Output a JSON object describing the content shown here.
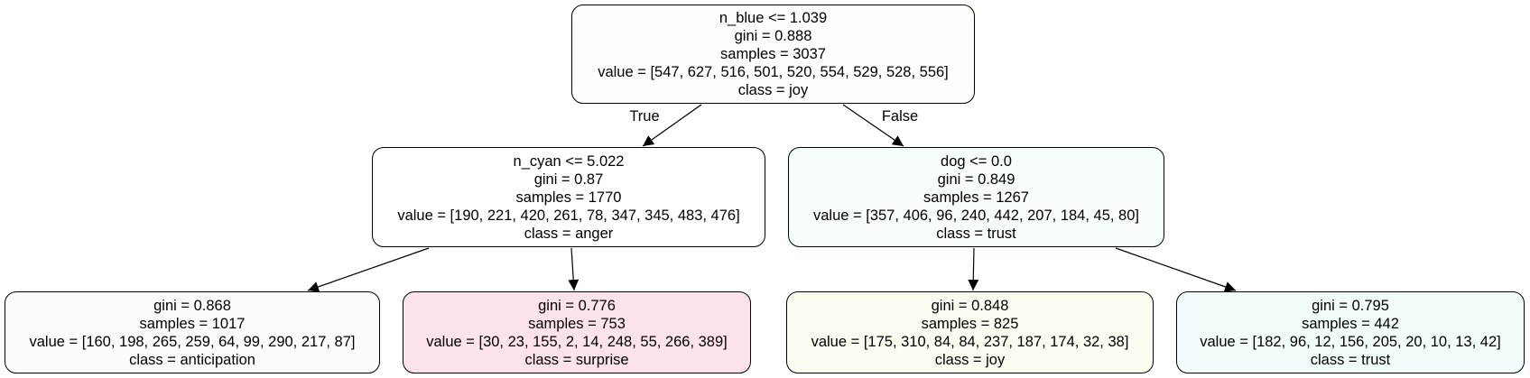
{
  "tree": {
    "root": {
      "split": "n_blue <= 1.039",
      "gini": "gini = 0.888",
      "samples": "samples = 3037",
      "value": "value = [547, 627, 516, 501, 520, 554, 529, 528, 556]",
      "class": "class = joy",
      "fill": "#fefefa"
    },
    "left": {
      "split": "n_cyan <= 5.022",
      "gini": "gini = 0.87",
      "samples": "samples = 1770",
      "value": "value = [190, 221, 420, 261, 78, 347, 345, 483, 476]",
      "class": "class = anger",
      "fill": "#ffffff"
    },
    "right": {
      "split": "dog <= 0.0",
      "gini": "gini = 0.849",
      "samples": "samples = 1267",
      "value": "value = [357, 406, 96, 240, 442, 207, 184, 45, 80]",
      "class": "class = trust",
      "fill": "#f7fdfd"
    },
    "leaf_ll": {
      "gini": "gini = 0.868",
      "samples": "samples = 1017",
      "value": "value = [160, 198, 265, 259, 64, 99, 290, 217, 87]",
      "class": "class = anticipation",
      "fill": "#fafbfd"
    },
    "leaf_lr": {
      "gini": "gini = 0.776",
      "samples": "samples = 753",
      "value": "value = [30, 23, 155, 2, 14, 248, 55, 266, 389]",
      "class": "class = surprise",
      "fill": "#fce3e9"
    },
    "leaf_rl": {
      "gini": "gini = 0.848",
      "samples": "samples = 825",
      "value": "value = [175, 310, 84, 84, 237, 187, 174, 32, 38]",
      "class": "class = joy",
      "fill": "#fafcf0"
    },
    "leaf_rr": {
      "gini": "gini = 0.795",
      "samples": "samples = 442",
      "value": "value = [182, 96, 12, 156, 205, 20, 10, 13, 42]",
      "class": "class = trust",
      "fill": "#f3fcfc"
    }
  },
  "edge_labels": {
    "true_label": "True",
    "false_label": "False"
  }
}
